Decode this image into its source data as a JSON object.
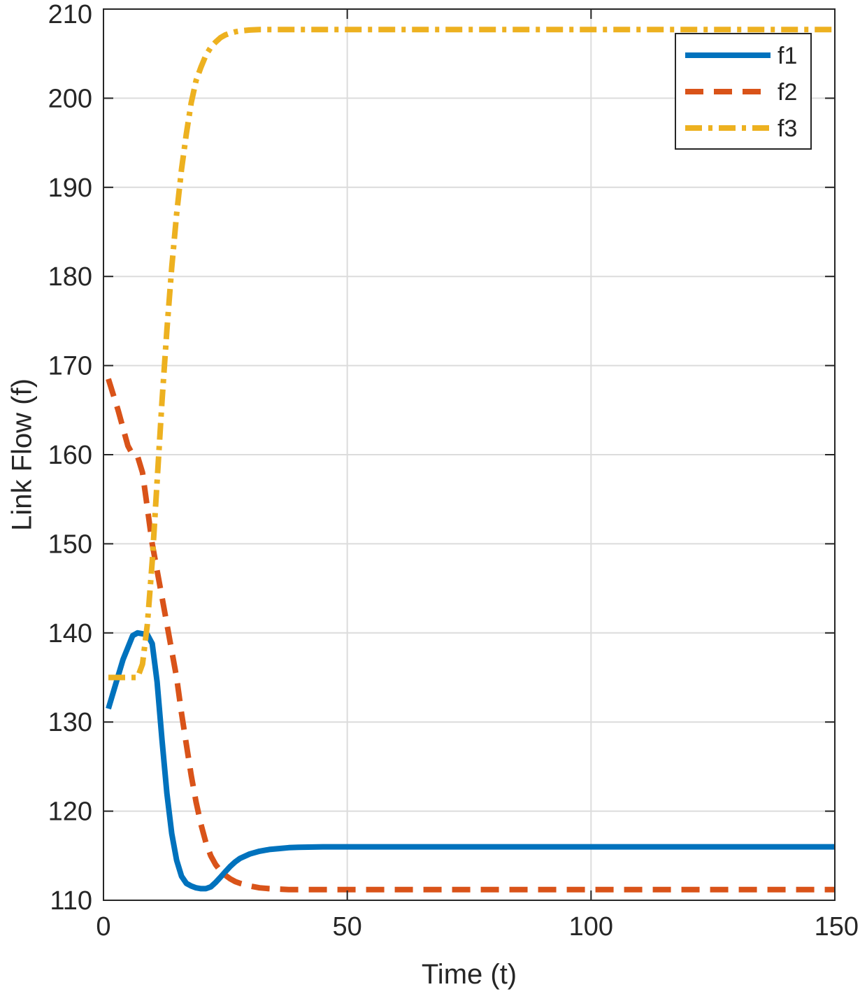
{
  "chart_data": {
    "type": "line",
    "xlabel": "Time (t)",
    "ylabel": "Link Flow (f)",
    "xlim": [
      0,
      150
    ],
    "ylim": [
      110,
      210
    ],
    "xticks": [
      0,
      50,
      100,
      150
    ],
    "yticks": [
      110,
      120,
      130,
      140,
      150,
      160,
      170,
      180,
      190,
      200,
      210
    ],
    "xtick_labels": [
      "0",
      "50",
      "100",
      "150"
    ],
    "ytick_labels": [
      "110",
      "120",
      "130",
      "140",
      "150",
      "160",
      "170",
      "180",
      "190",
      "200",
      "210"
    ],
    "grid": true,
    "legend_position": "top-right",
    "series": [
      {
        "name": "f1",
        "color": "#0072BD",
        "style": "solid",
        "x": [
          1,
          4,
          6,
          7,
          9,
          10,
          11,
          12,
          13,
          14,
          15,
          16,
          17,
          18,
          19,
          20,
          21,
          22,
          23,
          24,
          25,
          26,
          27,
          28,
          30,
          32,
          34,
          36,
          38,
          40,
          45,
          50,
          60,
          80,
          100,
          150
        ],
        "y": [
          131.5,
          137.0,
          139.7,
          140.0,
          139.8,
          138.8,
          134.5,
          128.0,
          122.0,
          117.5,
          114.5,
          112.7,
          111.9,
          111.6,
          111.4,
          111.3,
          111.3,
          111.5,
          112.0,
          112.6,
          113.2,
          113.8,
          114.3,
          114.7,
          115.2,
          115.5,
          115.7,
          115.8,
          115.9,
          115.95,
          116.0,
          116.0,
          116.0,
          116.0,
          116.0,
          116.0
        ]
      },
      {
        "name": "f2",
        "color": "#D95319",
        "style": "dashed",
        "x": [
          1,
          3,
          5,
          6,
          7,
          8,
          9,
          10,
          11,
          12,
          13,
          14,
          15,
          16,
          17,
          18,
          19,
          20,
          21,
          22,
          23,
          24,
          25,
          26,
          27,
          28,
          30,
          32,
          34,
          36,
          38,
          40,
          45,
          50,
          60,
          80,
          100,
          150
        ],
        "y": [
          168.5,
          165.0,
          161.0,
          160.0,
          159.8,
          158.0,
          154.0,
          150.0,
          147.0,
          144.0,
          141.0,
          138.0,
          135.0,
          131.0,
          127.5,
          124.0,
          121.0,
          118.5,
          116.5,
          115.0,
          114.0,
          113.3,
          112.8,
          112.4,
          112.1,
          111.9,
          111.6,
          111.4,
          111.3,
          111.25,
          111.2,
          111.2,
          111.2,
          111.2,
          111.2,
          111.2,
          111.2,
          111.2
        ]
      },
      {
        "name": "f3",
        "color": "#EDB120",
        "style": "dashdot",
        "x": [
          1,
          3,
          5,
          7,
          8,
          9,
          10,
          11,
          12,
          13,
          14,
          15,
          16,
          17,
          18,
          19,
          20,
          21,
          22,
          23,
          24,
          25,
          26,
          27,
          28,
          30,
          32,
          34,
          36,
          38,
          40,
          45,
          50,
          60,
          80,
          100,
          150
        ],
        "y": [
          135.0,
          135.0,
          135.0,
          135.0,
          136.5,
          141.0,
          148.0,
          157.0,
          166.0,
          174.0,
          181.0,
          187.0,
          192.0,
          196.0,
          199.5,
          202.0,
          203.5,
          204.8,
          205.7,
          206.3,
          206.8,
          207.1,
          207.3,
          207.45,
          207.55,
          207.65,
          207.7,
          207.7,
          207.7,
          207.7,
          207.7,
          207.7,
          207.7,
          207.7,
          207.7,
          207.7,
          207.7
        ]
      }
    ]
  }
}
